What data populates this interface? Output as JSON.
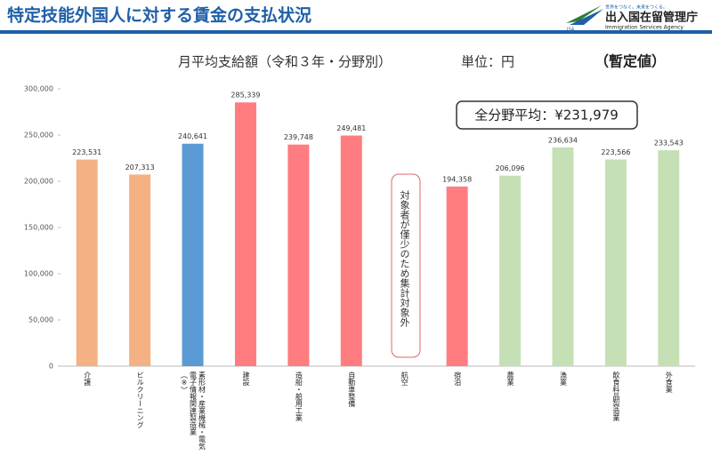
{
  "header": {
    "title": "特定技能外国人に対する賃金の支払状況",
    "tagline": "世界をつなぐ。未来をつくる。",
    "agency": "出入国在留管理庁",
    "agency_en": "Immigration Services Agency",
    "logo": "ISA"
  },
  "chart_data": {
    "type": "bar",
    "title": "月平均支給額（令和３年・分野別）",
    "unit": "単位：円",
    "status": "（暫定値）",
    "annotation": "全分野平均：¥231,979",
    "note": "対象者が僅少のため集計対象外",
    "categories": [
      "介護",
      "ビルクリーニング",
      "素形材・産業機械・電気\n電子情報関連製造業\n（※）",
      "建設",
      "造船・舶用工業",
      "自動車整備",
      "航空",
      "宿泊",
      "農業",
      "漁業",
      "飲食料品製造業",
      "外食業"
    ],
    "values": [
      223531,
      207313,
      240641,
      285339,
      239748,
      249481,
      null,
      194358,
      206096,
      236634,
      223566,
      233543
    ],
    "value_labels": [
      "223,531",
      "207,313",
      "240,641",
      "285,339",
      "239,748",
      "249,481",
      null,
      "194,358",
      "206,096",
      "236,634",
      "223,566",
      "233,543"
    ],
    "colors": [
      "#f4b183",
      "#f4b183",
      "#5b9bd5",
      "#ff7c80",
      "#ff7c80",
      "#ff7c80",
      null,
      "#ff7c80",
      "#c5e0b4",
      "#c5e0b4",
      "#c5e0b4",
      "#c5e0b4"
    ],
    "ylim": [
      0,
      300000
    ],
    "yticks": [
      0,
      {
        "value": 50000,
        "label": "50,000"
      },
      {
        "value": 100000,
        "label": "100,000"
      },
      {
        "value": 150000,
        "label": "150,000"
      },
      {
        "value": 200000,
        "label": "200,000"
      },
      {
        "value": 250000,
        "label": "250,000"
      },
      {
        "value": 300000,
        "label": "300,000"
      }
    ],
    "grid": false
  }
}
